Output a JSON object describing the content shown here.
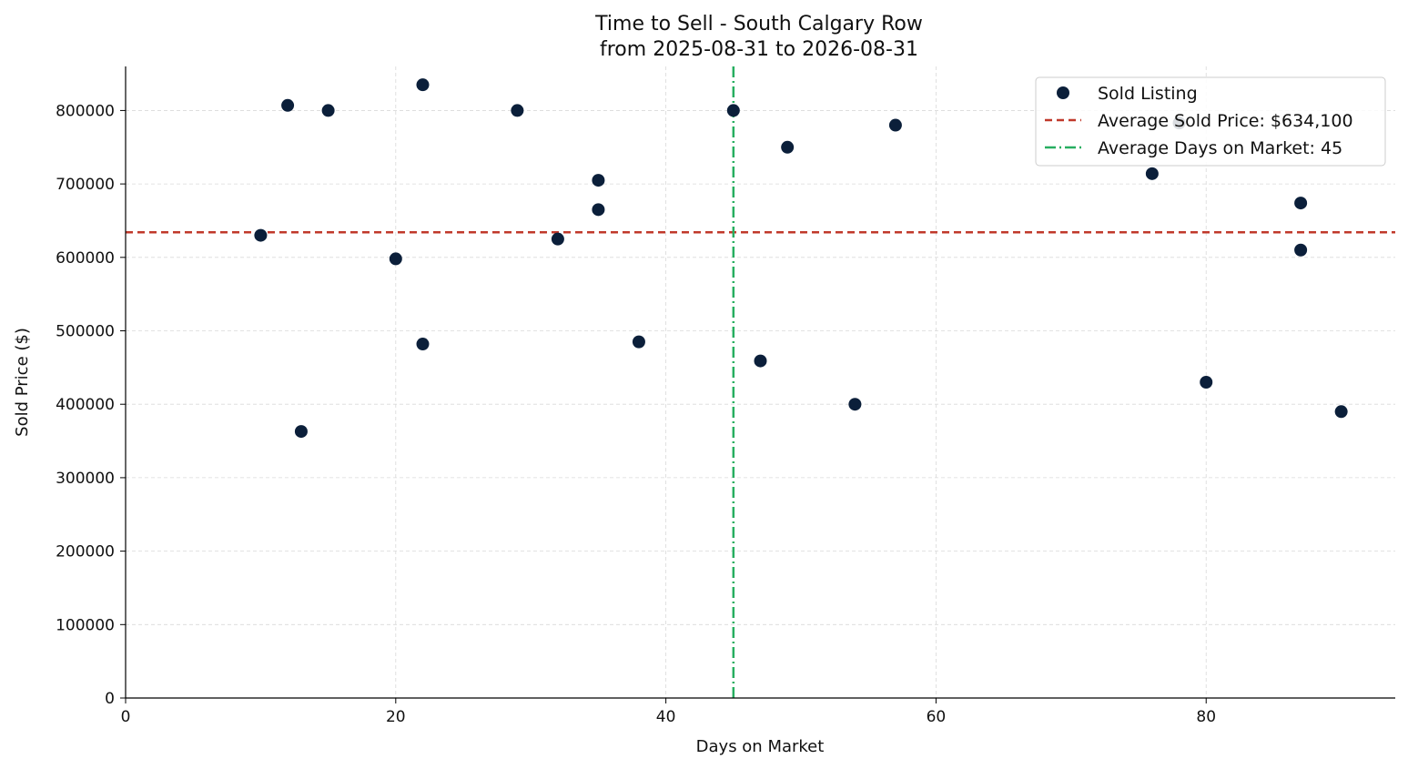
{
  "chart_data": {
    "type": "scatter",
    "title": "Time to Sell - South Calgary Row",
    "subtitle": "from 2025-08-31 to 2026-08-31",
    "xlabel": "Days on Market",
    "ylabel": "Sold Price ($)",
    "xlim": [
      0,
      94
    ],
    "ylim": [
      0,
      860000
    ],
    "xticks": [
      0,
      20,
      40,
      60,
      80
    ],
    "yticks": [
      0,
      100000,
      200000,
      300000,
      400000,
      500000,
      600000,
      700000,
      800000
    ],
    "grid": true,
    "legend_position": "top-right",
    "series": [
      {
        "name": "Sold Listing",
        "color": "#0b1f3a",
        "points": [
          {
            "x": 10,
            "y": 630000
          },
          {
            "x": 12,
            "y": 807000
          },
          {
            "x": 13,
            "y": 363000
          },
          {
            "x": 15,
            "y": 800000
          },
          {
            "x": 20,
            "y": 598000
          },
          {
            "x": 22,
            "y": 835000
          },
          {
            "x": 22,
            "y": 482000
          },
          {
            "x": 29,
            "y": 800000
          },
          {
            "x": 32,
            "y": 625000
          },
          {
            "x": 35,
            "y": 705000
          },
          {
            "x": 35,
            "y": 665000
          },
          {
            "x": 38,
            "y": 485000
          },
          {
            "x": 45,
            "y": 800000
          },
          {
            "x": 47,
            "y": 459000
          },
          {
            "x": 49,
            "y": 750000
          },
          {
            "x": 54,
            "y": 400000
          },
          {
            "x": 57,
            "y": 780000
          },
          {
            "x": 76,
            "y": 714000
          },
          {
            "x": 78,
            "y": 783000
          },
          {
            "x": 80,
            "y": 430000
          },
          {
            "x": 87,
            "y": 674000
          },
          {
            "x": 87,
            "y": 610000
          },
          {
            "x": 90,
            "y": 390000
          }
        ]
      }
    ],
    "reference_lines": [
      {
        "orientation": "horizontal",
        "value": 634100,
        "label": "Average Sold Price: $634,100",
        "color": "#c0392b",
        "style": "dashed"
      },
      {
        "orientation": "vertical",
        "value": 45,
        "label": "Average Days on Market: 45",
        "color": "#27ae60",
        "style": "dashdot"
      }
    ]
  }
}
